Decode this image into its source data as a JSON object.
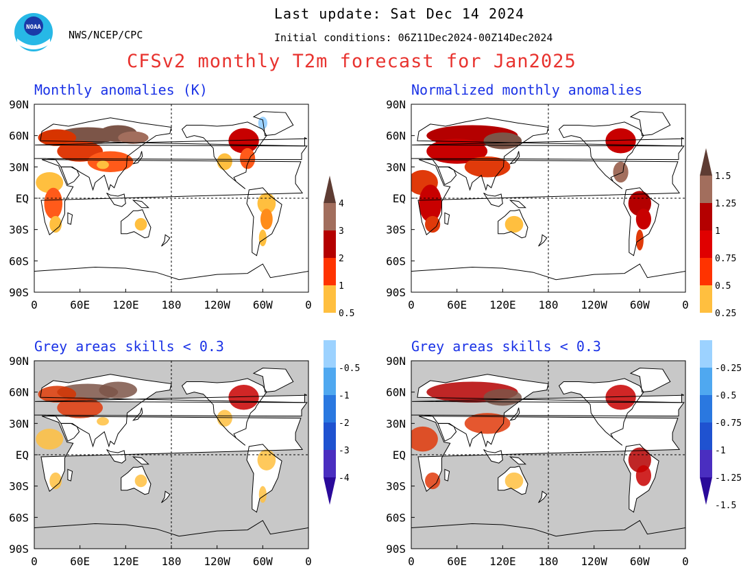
{
  "header": {
    "last_update": "Last update: Sat Dec 14 2024",
    "initial_conditions": "Initial conditions: 06Z11Dec2024-00Z14Dec2024",
    "agency": "NWS/NCEP/CPC",
    "logo_text": "NOAA"
  },
  "title": "CFSv2 monthly T2m forecast for Jan2025",
  "colors": {
    "title": "#e8332f",
    "panel_title": "#1a32e6",
    "low_skill_grey": "#c8c8c8"
  },
  "axes": {
    "lat_labels": [
      "90N",
      "60N",
      "30N",
      "EQ",
      "30S",
      "60S",
      "90S"
    ],
    "lon_labels": [
      "0",
      "60E",
      "120E",
      "180",
      "120W",
      "60W",
      "0"
    ]
  },
  "colorbars": {
    "absolute": {
      "labels": [
        "4",
        "3",
        "2",
        "1",
        "0.5",
        "-0.5",
        "-1",
        "-2",
        "-3",
        "-4"
      ]
    },
    "normalized": {
      "labels": [
        "1.5",
        "1.25",
        "1",
        "0.75",
        "0.5",
        "0.25",
        "-0.25",
        "-0.5",
        "-0.75",
        "-1",
        "-1.25",
        "-1.5"
      ]
    }
  },
  "chart_data": [
    {
      "type": "heatmap",
      "title": "Monthly anomalies (K)",
      "x": [
        "0",
        "60E",
        "120E",
        "180",
        "120W",
        "60W",
        "0"
      ],
      "y": [
        "90N",
        "60N",
        "30N",
        "EQ",
        "30S",
        "60S",
        "90S"
      ],
      "colorbar": [
        -4,
        -3,
        -2,
        -1,
        -0.5,
        0.5,
        1,
        2,
        3,
        4
      ],
      "grid": "dashed lines at EQ and 180"
    },
    {
      "type": "heatmap",
      "title": "Normalized monthly anomalies",
      "x": [
        "0",
        "60E",
        "120E",
        "180",
        "120W",
        "60W",
        "0"
      ],
      "y": [
        "90N",
        "60N",
        "30N",
        "EQ",
        "30S",
        "60S",
        "90S"
      ],
      "colorbar": [
        -1.5,
        -1.25,
        -1,
        -0.75,
        -0.5,
        -0.25,
        0.25,
        0.5,
        0.75,
        1,
        1.25,
        1.5
      ],
      "grid": "dashed lines at EQ and 180"
    },
    {
      "type": "heatmap",
      "title": "Grey areas skills < 0.3",
      "x": [
        "0",
        "60E",
        "120E",
        "180",
        "120W",
        "60W",
        "0"
      ],
      "y": [
        "90N",
        "60N",
        "30N",
        "EQ",
        "30S",
        "60S",
        "90S"
      ],
      "colorbar": [
        -4,
        -3,
        -2,
        -1,
        -0.5,
        0.5,
        1,
        2,
        3,
        4
      ],
      "grid": "dashed lines at EQ and 180"
    },
    {
      "type": "heatmap",
      "title": "Grey areas skills < 0.3",
      "x": [
        "0",
        "60E",
        "120E",
        "180",
        "120W",
        "60W",
        "0"
      ],
      "y": [
        "90N",
        "60N",
        "30N",
        "EQ",
        "30S",
        "60S",
        "90S"
      ],
      "colorbar": [
        -1.5,
        -1.25,
        -1,
        -0.75,
        -0.5,
        -0.25,
        0.25,
        0.5,
        0.75,
        1,
        1.25,
        1.5
      ],
      "grid": "dashed lines at EQ and 180"
    }
  ]
}
